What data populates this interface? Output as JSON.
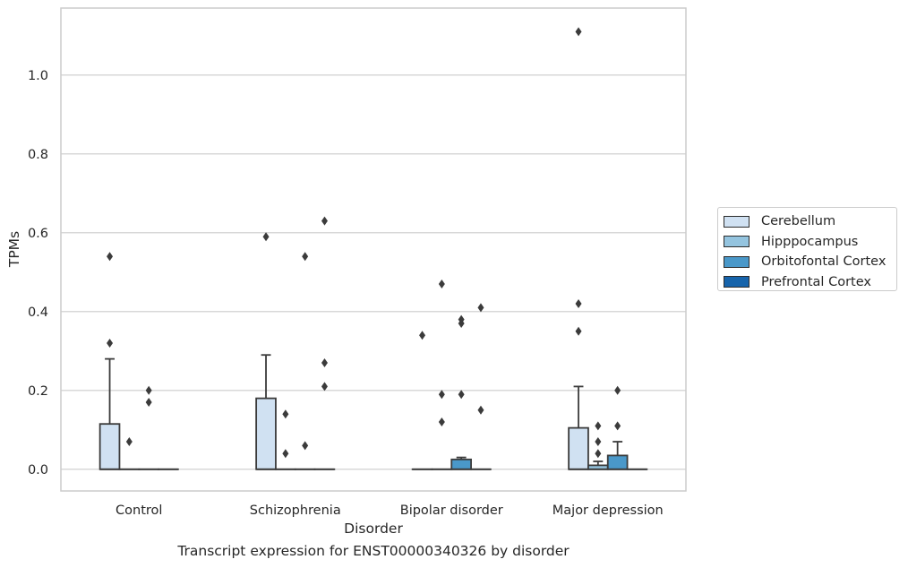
{
  "chart_data": {
    "type": "box",
    "caption": "Transcript expression for ENST00000340326 by disorder",
    "xlabel": "Disorder",
    "ylabel": "TPMs",
    "ylim": [
      -0.055,
      1.17
    ],
    "yticks": [
      0.0,
      0.2,
      0.4,
      0.6,
      0.8,
      1.0
    ],
    "ytick_labels": [
      "0.0",
      "0.2",
      "0.4",
      "0.6",
      "0.8",
      "1.0"
    ],
    "grid": "horizontal",
    "legend_position": "right",
    "categories": [
      "Control",
      "Schizophrenia",
      "Bipolar disorder",
      "Major depression"
    ],
    "series": [
      {
        "name": "Cerebellum",
        "color": "#d0e1f2",
        "boxes": [
          {
            "q1": 0.0,
            "median": 0.0,
            "q3": 0.115,
            "whisker_low": 0.0,
            "whisker_high": 0.28,
            "outliers": [
              0.32,
              0.54
            ]
          },
          {
            "q1": 0.0,
            "median": 0.0,
            "q3": 0.18,
            "whisker_low": 0.0,
            "whisker_high": 0.29,
            "outliers": [
              0.59
            ]
          },
          {
            "q1": 0.0,
            "median": 0.0,
            "q3": 0.0,
            "whisker_low": 0.0,
            "whisker_high": 0.0,
            "outliers": [
              0.34
            ]
          },
          {
            "q1": 0.0,
            "median": 0.0,
            "q3": 0.105,
            "whisker_low": 0.0,
            "whisker_high": 0.21,
            "outliers": [
              0.35,
              0.42,
              1.11
            ]
          }
        ]
      },
      {
        "name": "Hipppocampus",
        "color": "#94c4df",
        "boxes": [
          {
            "q1": 0.0,
            "median": 0.0,
            "q3": 0.0,
            "whisker_low": 0.0,
            "whisker_high": 0.0,
            "outliers": [
              0.07
            ]
          },
          {
            "q1": 0.0,
            "median": 0.0,
            "q3": 0.0,
            "whisker_low": 0.0,
            "whisker_high": 0.0,
            "outliers": [
              0.04,
              0.14
            ]
          },
          {
            "q1": 0.0,
            "median": 0.0,
            "q3": 0.0,
            "whisker_low": 0.0,
            "whisker_high": 0.0,
            "outliers": [
              0.12,
              0.19,
              0.47
            ]
          },
          {
            "q1": 0.0,
            "median": 0.0,
            "q3": 0.01,
            "whisker_low": 0.0,
            "whisker_high": 0.02,
            "outliers": [
              0.04,
              0.07,
              0.11
            ]
          }
        ]
      },
      {
        "name": "Orbitofontal Cortex",
        "color": "#4a98c9",
        "boxes": [
          {
            "q1": 0.0,
            "median": 0.0,
            "q3": 0.0,
            "whisker_low": 0.0,
            "whisker_high": 0.0,
            "outliers": [
              0.17,
              0.2
            ]
          },
          {
            "q1": 0.0,
            "median": 0.0,
            "q3": 0.0,
            "whisker_low": 0.0,
            "whisker_high": 0.0,
            "outliers": [
              0.06,
              0.54
            ]
          },
          {
            "q1": 0.0,
            "median": 0.0,
            "q3": 0.025,
            "whisker_low": 0.0,
            "whisker_high": 0.03,
            "outliers": [
              0.19,
              0.37,
              0.38
            ]
          },
          {
            "q1": 0.0,
            "median": 0.0,
            "q3": 0.035,
            "whisker_low": 0.0,
            "whisker_high": 0.07,
            "outliers": [
              0.11,
              0.2
            ]
          }
        ]
      },
      {
        "name": "Prefrontal Cortex",
        "color": "#1764ab",
        "boxes": [
          {
            "q1": 0.0,
            "median": 0.0,
            "q3": 0.0,
            "whisker_low": 0.0,
            "whisker_high": 0.0,
            "outliers": []
          },
          {
            "q1": 0.0,
            "median": 0.0,
            "q3": 0.0,
            "whisker_low": 0.0,
            "whisker_high": 0.0,
            "outliers": [
              0.21,
              0.27,
              0.63
            ]
          },
          {
            "q1": 0.0,
            "median": 0.0,
            "q3": 0.0,
            "whisker_low": 0.0,
            "whisker_high": 0.0,
            "outliers": [
              0.15,
              0.41
            ]
          },
          {
            "q1": 0.0,
            "median": 0.0,
            "q3": 0.0,
            "whisker_low": 0.0,
            "whisker_high": 0.0,
            "outliers": []
          }
        ]
      }
    ]
  }
}
